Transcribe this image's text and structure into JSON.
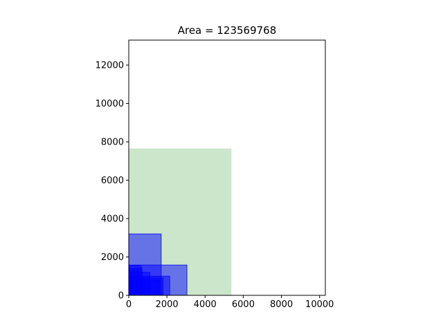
{
  "chart_data": {
    "type": "rectangles",
    "title": "Area = 123569768",
    "xlabel": "",
    "ylabel": "",
    "xlim": [
      0,
      10300
    ],
    "ylim": [
      0,
      13300
    ],
    "xticks": [
      0,
      2000,
      4000,
      6000,
      8000,
      10000
    ],
    "yticks": [
      0,
      2000,
      4000,
      6000,
      8000,
      10000,
      12000
    ],
    "xtick_labels": [
      "0",
      "2000",
      "4000",
      "6000",
      "8000",
      "10000"
    ],
    "ytick_labels": [
      "0",
      "2000",
      "4000",
      "6000",
      "8000",
      "10000",
      "12000"
    ],
    "grid": false,
    "legend": "none",
    "container": {
      "x": 0,
      "y": 0,
      "width": 5380,
      "height": 7650,
      "color": "#008000",
      "alpha": 0.2
    },
    "rectangles": [
      {
        "x": 0,
        "y": 0,
        "width": 1700,
        "height": 3200
      },
      {
        "x": 0,
        "y": 0,
        "width": 3050,
        "height": 1580
      },
      {
        "x": 0,
        "y": 0,
        "width": 2150,
        "height": 1000
      },
      {
        "x": 0,
        "y": 0,
        "width": 650,
        "height": 1550
      },
      {
        "x": 0,
        "y": 0,
        "width": 1800,
        "height": 900
      },
      {
        "x": 0,
        "y": 0,
        "width": 1100,
        "height": 1200
      },
      {
        "x": 0,
        "y": 0,
        "width": 700,
        "height": 1400
      },
      {
        "x": 0,
        "y": 0,
        "width": 1600,
        "height": 800
      },
      {
        "x": 0,
        "y": 0,
        "width": 500,
        "height": 1300
      }
    ],
    "rect_color": "#0000ff",
    "rect_alpha": 0.5
  }
}
